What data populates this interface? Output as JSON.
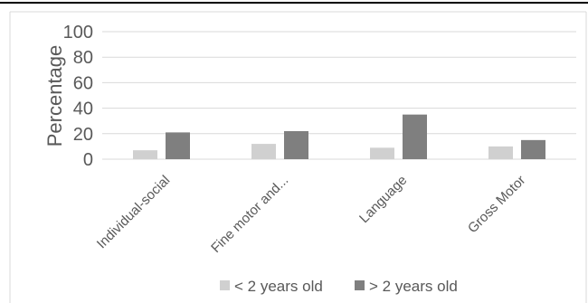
{
  "chart_data": {
    "type": "bar",
    "categories": [
      "Individual-social",
      "Fine motor and...",
      "Language",
      "Gross Motor"
    ],
    "series": [
      {
        "name": "< 2 years old",
        "values": [
          7,
          12,
          9,
          10
        ],
        "color": "#d0d0d0"
      },
      {
        "name": "> 2 years old",
        "values": [
          21,
          22,
          35,
          15
        ],
        "color": "#7f7f7f"
      }
    ],
    "title": "",
    "xlabel": "",
    "ylabel": "Percentage",
    "ylim": [
      0,
      100
    ],
    "yticks": [
      "0",
      "20",
      "40",
      "60",
      "80",
      "100"
    ],
    "grid": true,
    "legend": "bottom"
  }
}
